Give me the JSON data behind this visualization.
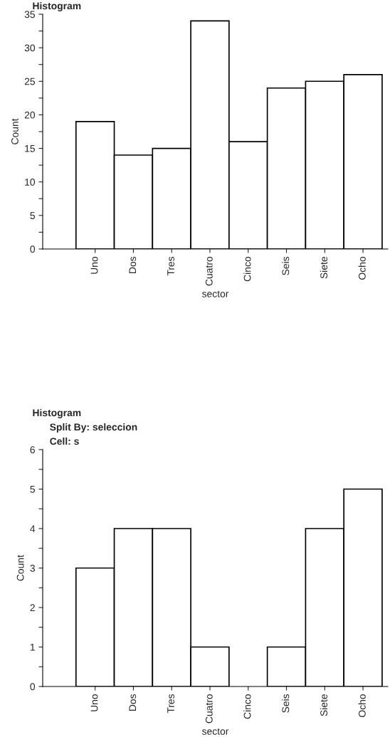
{
  "chart_data": [
    {
      "type": "bar",
      "title": "Histogram",
      "xlabel": "sector",
      "ylabel": "Count",
      "categories": [
        "Uno",
        "Dos",
        "Tres",
        "Cuatro",
        "Cinco",
        "Seis",
        "Siete",
        "Ocho"
      ],
      "values": [
        19,
        14,
        15,
        34,
        16,
        24,
        25,
        26
      ],
      "color": "#ffffff",
      "ylim": [
        0,
        35
      ],
      "yticks": [
        0,
        {
          "value": 2.5,
          "label": null
        },
        5,
        {
          "value": 7.5,
          "label": null
        },
        10,
        {
          "value": 12.5,
          "label": null
        },
        15,
        {
          "value": 17.5,
          "label": null
        },
        20,
        {
          "value": 22.5,
          "label": null
        },
        25,
        {
          "value": 27.5,
          "label": null
        },
        30,
        {
          "value": 32.5,
          "label": null
        },
        35
      ],
      "grid": false,
      "legend": false
    },
    {
      "type": "bar",
      "title": "Histogram",
      "subtitle": "Split By: seleccion\nCell: s",
      "xlabel": "sector",
      "ylabel": "Count",
      "categories": [
        "Uno",
        "Dos",
        "Tres",
        "Cuatro",
        "Cinco",
        "Seis",
        "Siete",
        "Ocho"
      ],
      "values": [
        3,
        4,
        4,
        1,
        0,
        1,
        4,
        5
      ],
      "color": "#ffffff",
      "ylim": [
        0,
        6
      ],
      "yticks": [
        0,
        {
          "value": 0.5,
          "label": null
        },
        1,
        {
          "value": 1.5,
          "label": null
        },
        2,
        {
          "value": 2.5,
          "label": null
        },
        3,
        {
          "value": 3.5,
          "label": null
        },
        4,
        {
          "value": 4.5,
          "label": null
        },
        5,
        {
          "value": 5.5,
          "label": null
        },
        6
      ],
      "grid": false,
      "legend": false
    }
  ]
}
